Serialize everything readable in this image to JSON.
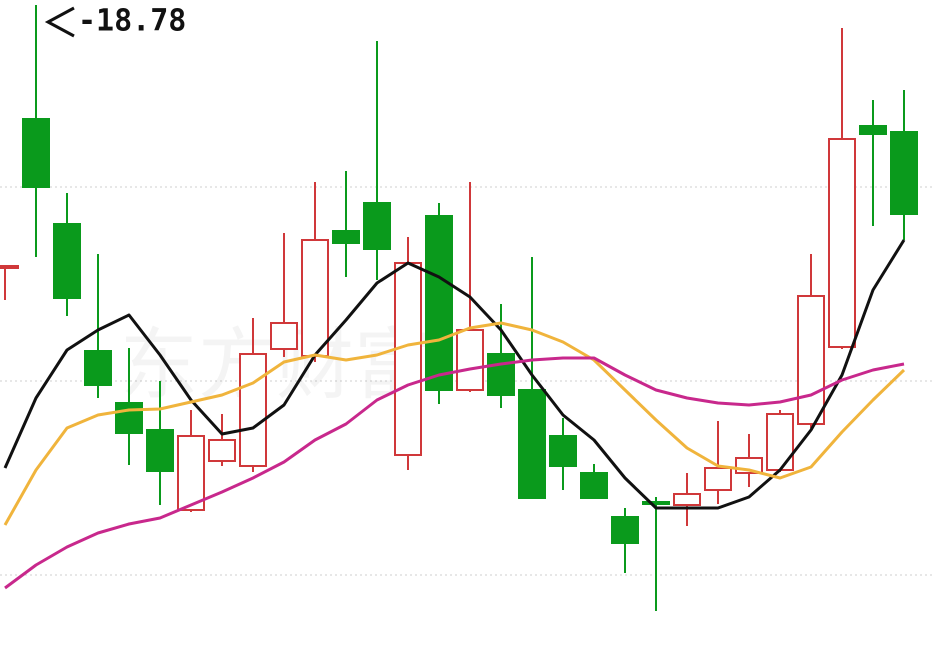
{
  "chart_data": {
    "type": "candlestick",
    "annotation": "-18.78",
    "watermark": "东方财富",
    "ylim": [
      12.18,
      18.83
    ],
    "grid_values": [
      16.96,
      15.02,
      13.08
    ],
    "up_color": "#d0383a",
    "down_color": "#0a9a1c",
    "open": [
      16.15,
      17.64,
      16.59,
      15.32,
      14.8,
      14.53,
      13.73,
      14.22,
      14.17,
      15.34,
      15.27,
      16.52,
      16.8,
      14.28,
      16.67,
      14.93,
      15.29,
      14.93,
      14.47,
      14.1,
      13.66,
      13.81,
      13.78,
      13.93,
      14.1,
      14.13,
      14.59,
      15.36,
      17.57,
      17.51
    ],
    "high": [
      16.17,
      18.78,
      16.9,
      16.29,
      15.35,
      15.02,
      14.73,
      14.69,
      15.65,
      16.5,
      17.01,
      17.12,
      18.42,
      16.46,
      16.8,
      17.01,
      15.79,
      16.26,
      14.65,
      14.19,
      13.75,
      13.86,
      14.1,
      14.62,
      14.49,
      14.73,
      16.29,
      18.55,
      17.83,
      17.93
    ],
    "low": [
      15.83,
      16.26,
      15.67,
      14.85,
      14.18,
      13.78,
      13.71,
      14.17,
      14.11,
      15.26,
      15.21,
      16.06,
      16.03,
      14.13,
      14.79,
      14.91,
      14.75,
      13.85,
      13.93,
      13.85,
      13.1,
      12.72,
      13.57,
      13.79,
      13.96,
      14.11,
      14.55,
      15.34,
      16.57,
      16.43
    ],
    "close": [
      16.17,
      16.96,
      15.85,
      14.98,
      14.5,
      14.12,
      14.47,
      14.43,
      15.29,
      15.6,
      16.43,
      16.4,
      16.34,
      16.2,
      14.93,
      15.53,
      14.88,
      13.85,
      14.17,
      13.85,
      13.4,
      13.79,
      13.89,
      14.15,
      14.25,
      14.69,
      15.87,
      17.44,
      17.49,
      16.69
    ],
    "lines": [
      {
        "color": "#111111",
        "values": [
          14.15,
          14.85,
          15.33,
          15.53,
          15.68,
          15.28,
          14.83,
          14.49,
          14.55,
          14.78,
          15.28,
          15.63,
          16.0,
          16.2,
          16.06,
          15.86,
          15.53,
          15.08,
          14.68,
          14.43,
          14.05,
          13.75,
          13.75,
          13.75,
          13.86,
          14.13,
          14.53,
          15.08,
          15.93,
          16.43
        ]
      },
      {
        "color": "#f0b43c",
        "values": [
          13.58,
          14.13,
          14.55,
          14.68,
          14.73,
          14.74,
          14.81,
          14.88,
          15.0,
          15.21,
          15.28,
          15.23,
          15.28,
          15.38,
          15.43,
          15.55,
          15.6,
          15.53,
          15.41,
          15.23,
          14.93,
          14.63,
          14.35,
          14.17,
          14.13,
          14.05,
          14.16,
          14.51,
          14.83,
          15.13
        ]
      },
      {
        "color": "#c8288c",
        "values": [
          12.95,
          13.18,
          13.36,
          13.5,
          13.59,
          13.65,
          13.78,
          13.91,
          14.05,
          14.21,
          14.43,
          14.59,
          14.83,
          14.98,
          15.08,
          15.14,
          15.19,
          15.23,
          15.25,
          15.25,
          15.08,
          14.93,
          14.85,
          14.8,
          14.78,
          14.81,
          14.88,
          15.03,
          15.13,
          15.19
        ]
      }
    ]
  }
}
